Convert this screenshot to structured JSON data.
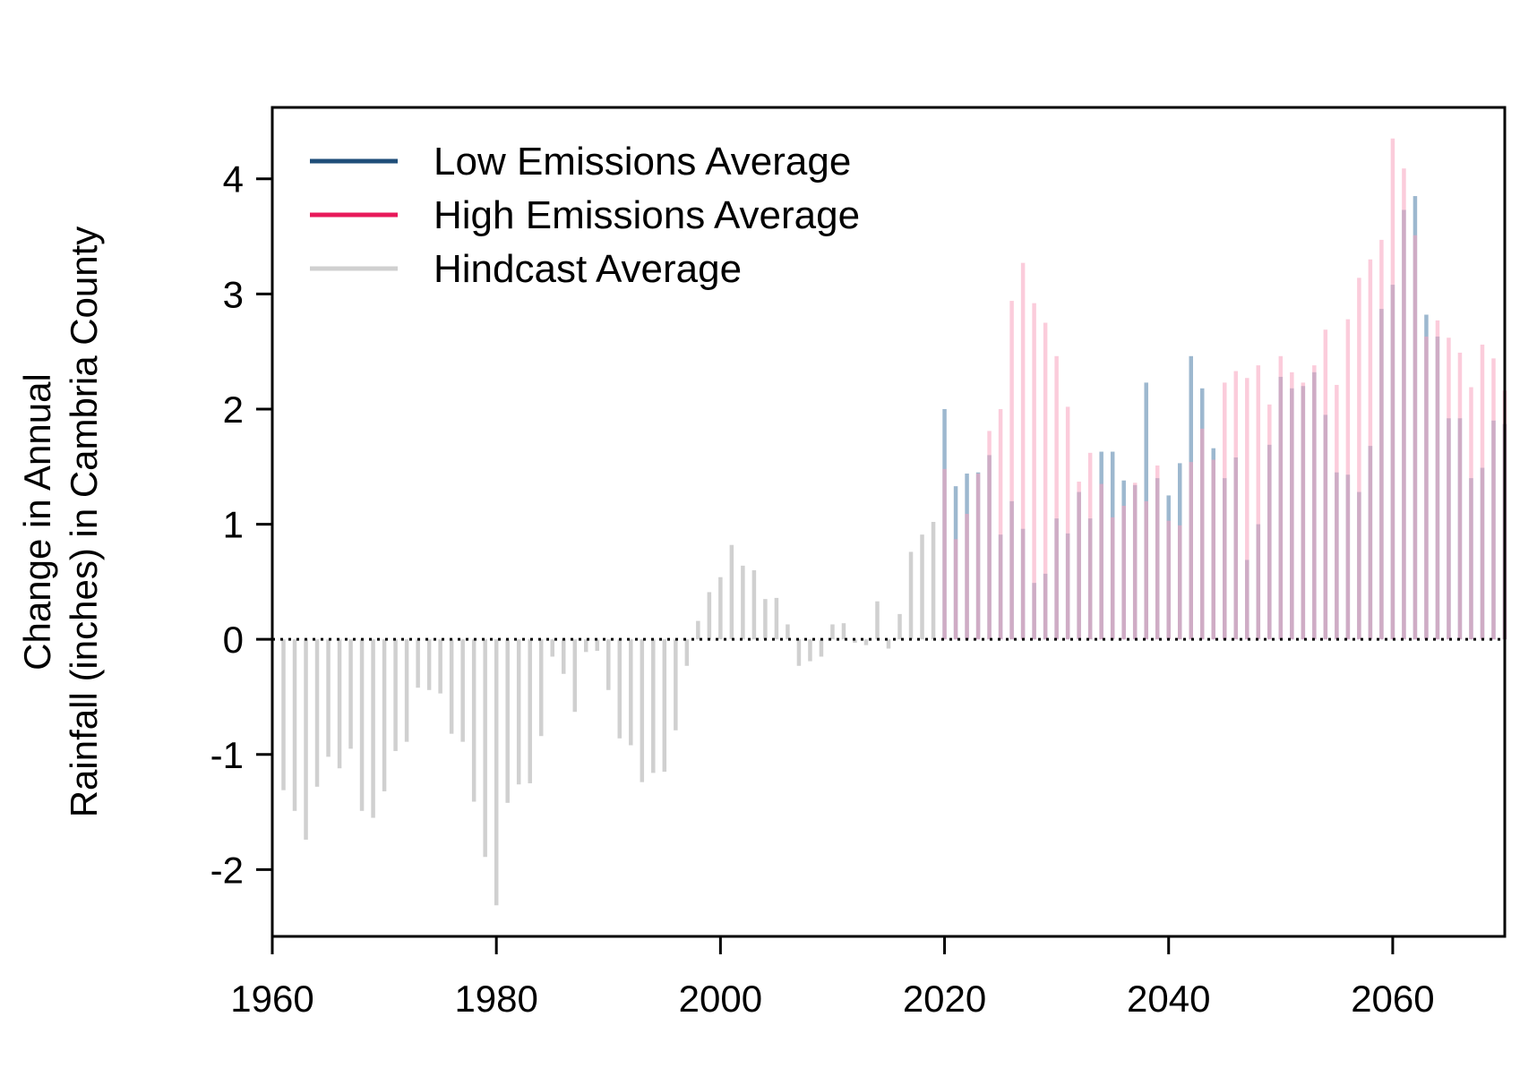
{
  "chart_data": {
    "type": "bar",
    "title": "",
    "ylabel_lines": [
      "Change in Annual",
      "Rainfall (inches) in Cambria County"
    ],
    "xlabel": "",
    "xlim": [
      1960,
      2070
    ],
    "ylim": [
      -2.58,
      4.62
    ],
    "x_ticks": [
      1960,
      1980,
      2000,
      2020,
      2040,
      2060
    ],
    "y_ticks": [
      -2,
      -1,
      0,
      1,
      2,
      3,
      4
    ],
    "reference_line_y": 0,
    "legend": {
      "placement": "top-left"
    },
    "series": [
      {
        "name": "Low Emissions Average",
        "legend_color": "#1f4e79",
        "bar_color": "#9db8cf",
        "x": [
          2020,
          2021,
          2022,
          2023,
          2024,
          2025,
          2026,
          2027,
          2028,
          2029,
          2030,
          2031,
          2032,
          2033,
          2034,
          2035,
          2036,
          2037,
          2038,
          2039,
          2040,
          2041,
          2042,
          2043,
          2044,
          2045,
          2046,
          2047,
          2048,
          2049,
          2050,
          2051,
          2052,
          2053,
          2054,
          2055,
          2056,
          2057,
          2058,
          2059,
          2060,
          2061,
          2062,
          2063,
          2064,
          2065,
          2066,
          2067,
          2068,
          2069,
          2070
        ],
        "values": [
          2.0,
          1.33,
          1.44,
          1.45,
          1.6,
          0.91,
          1.2,
          0.96,
          0.49,
          0.57,
          1.05,
          0.92,
          1.28,
          1.05,
          1.63,
          1.63,
          1.38,
          1.34,
          2.23,
          1.4,
          1.25,
          1.53,
          2.46,
          2.18,
          1.66,
          1.4,
          1.58,
          0.69,
          1.0,
          1.69,
          2.28,
          2.18,
          2.2,
          2.32,
          1.95,
          1.45,
          1.43,
          1.28,
          1.68,
          2.87,
          3.08,
          3.73,
          3.85,
          2.82,
          2.63,
          1.92,
          1.92,
          1.4,
          1.49,
          1.9,
          1.87
        ]
      },
      {
        "name": "High Emissions Average",
        "legend_color": "#e8195a",
        "bar_color": "#f7a3bd",
        "x": [
          2020,
          2021,
          2022,
          2023,
          2024,
          2025,
          2026,
          2027,
          2028,
          2029,
          2030,
          2031,
          2032,
          2033,
          2034,
          2035,
          2036,
          2037,
          2038,
          2039,
          2040,
          2041,
          2042,
          2043,
          2044,
          2045,
          2046,
          2047,
          2048,
          2049,
          2050,
          2051,
          2052,
          2053,
          2054,
          2055,
          2056,
          2057,
          2058,
          2059,
          2060,
          2061,
          2062,
          2063,
          2064,
          2065,
          2066,
          2067,
          2068,
          2069,
          2070
        ],
        "values": [
          1.48,
          0.87,
          1.09,
          1.44,
          1.81,
          2.0,
          2.94,
          3.27,
          2.92,
          2.75,
          2.46,
          2.02,
          1.37,
          1.62,
          1.35,
          1.06,
          1.16,
          1.36,
          1.2,
          1.51,
          1.03,
          0.99,
          1.54,
          1.83,
          1.56,
          2.23,
          2.33,
          2.27,
          2.38,
          2.04,
          2.46,
          2.32,
          2.23,
          2.38,
          2.69,
          2.21,
          2.78,
          3.14,
          3.3,
          3.47,
          4.35,
          4.09,
          3.51,
          2.63,
          2.77,
          2.62,
          2.49,
          2.19,
          2.56,
          2.44,
          2.16
        ]
      },
      {
        "name": "Hindcast Average",
        "legend_color": "#d0d0d0",
        "bar_color": "#d0d0d0",
        "x": [
          1961,
          1962,
          1963,
          1964,
          1965,
          1966,
          1967,
          1968,
          1969,
          1970,
          1971,
          1972,
          1973,
          1974,
          1975,
          1976,
          1977,
          1978,
          1979,
          1980,
          1981,
          1982,
          1983,
          1984,
          1985,
          1986,
          1987,
          1988,
          1989,
          1990,
          1991,
          1992,
          1993,
          1994,
          1995,
          1996,
          1997,
          1998,
          1999,
          2000,
          2001,
          2002,
          2003,
          2004,
          2005,
          2006,
          2007,
          2008,
          2009,
          2010,
          2011,
          2012,
          2013,
          2014,
          2015,
          2016,
          2017,
          2018,
          2019
        ],
        "values": [
          -1.31,
          -1.49,
          -1.74,
          -1.28,
          -1.02,
          -1.12,
          -0.95,
          -1.49,
          -1.55,
          -1.32,
          -0.97,
          -0.89,
          -0.42,
          -0.44,
          -0.47,
          -0.82,
          -0.89,
          -1.41,
          -1.89,
          -2.31,
          -1.42,
          -1.26,
          -1.25,
          -0.84,
          -0.15,
          -0.3,
          -0.63,
          -0.11,
          -0.1,
          -0.44,
          -0.86,
          -0.92,
          -1.24,
          -1.16,
          -1.15,
          -0.79,
          -0.23,
          0.16,
          0.41,
          0.54,
          0.82,
          0.64,
          0.6,
          0.35,
          0.36,
          0.13,
          -0.23,
          -0.19,
          -0.15,
          0.13,
          0.14,
          -0.03,
          -0.05,
          0.33,
          -0.08,
          0.22,
          0.76,
          0.91,
          1.02
        ]
      }
    ]
  }
}
